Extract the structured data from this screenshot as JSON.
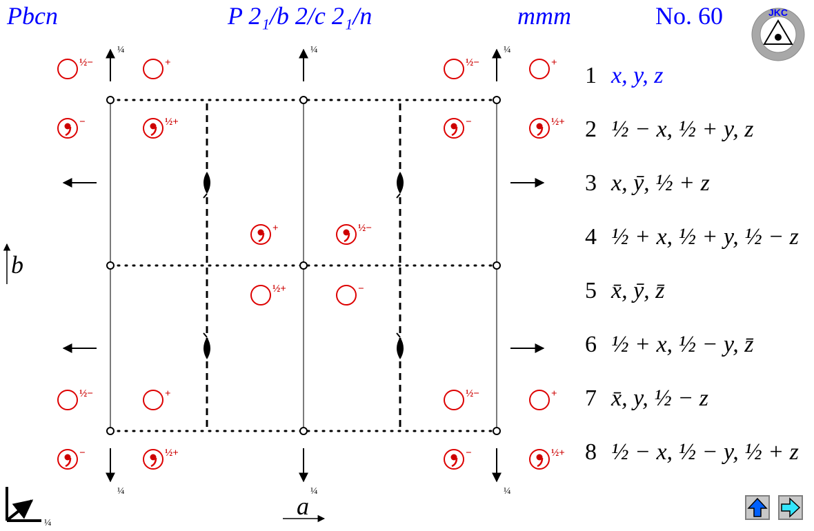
{
  "header": {
    "short_symbol": "Pbcn",
    "full_symbol": "P 2₁/b 2/c 2₁/n",
    "point_group": "mmm",
    "number": "No. 60"
  },
  "logo": {
    "text": "JKC",
    "icon": "jkc-logo-icon"
  },
  "axes": {
    "a": "a",
    "b": "b",
    "corner_fraction": "¼"
  },
  "markers": {
    "half_minus": "½−",
    "half_plus": "½+",
    "plus": "+",
    "minus": "−",
    "quarter": "¼"
  },
  "symmetry_operations": [
    {
      "n": "1",
      "text": "x, y, z"
    },
    {
      "n": "2",
      "text": "½ − x, ½ + y, z"
    },
    {
      "n": "3",
      "text": "x, ȳ, ½ + z"
    },
    {
      "n": "4",
      "text": "½ + x, ½ + y, ½ − z"
    },
    {
      "n": "5",
      "text": "x̄, ȳ, z̄"
    },
    {
      "n": "6",
      "text": "½ + x, ½ − y, z̄"
    },
    {
      "n": "7",
      "text": "x̄, y, ½ − z"
    },
    {
      "n": "8",
      "text": "½ − x, ½ − y, ½ + z"
    }
  ],
  "nav": {
    "up_icon": "arrow-up-icon",
    "next_icon": "arrow-right-icon"
  },
  "colors": {
    "title": "#0000ff",
    "position_marker": "#cc0000",
    "operation_1": "#0000ff",
    "lines": "#000000",
    "nav_up": "#0060ff",
    "nav_next": "#33e6ff"
  }
}
